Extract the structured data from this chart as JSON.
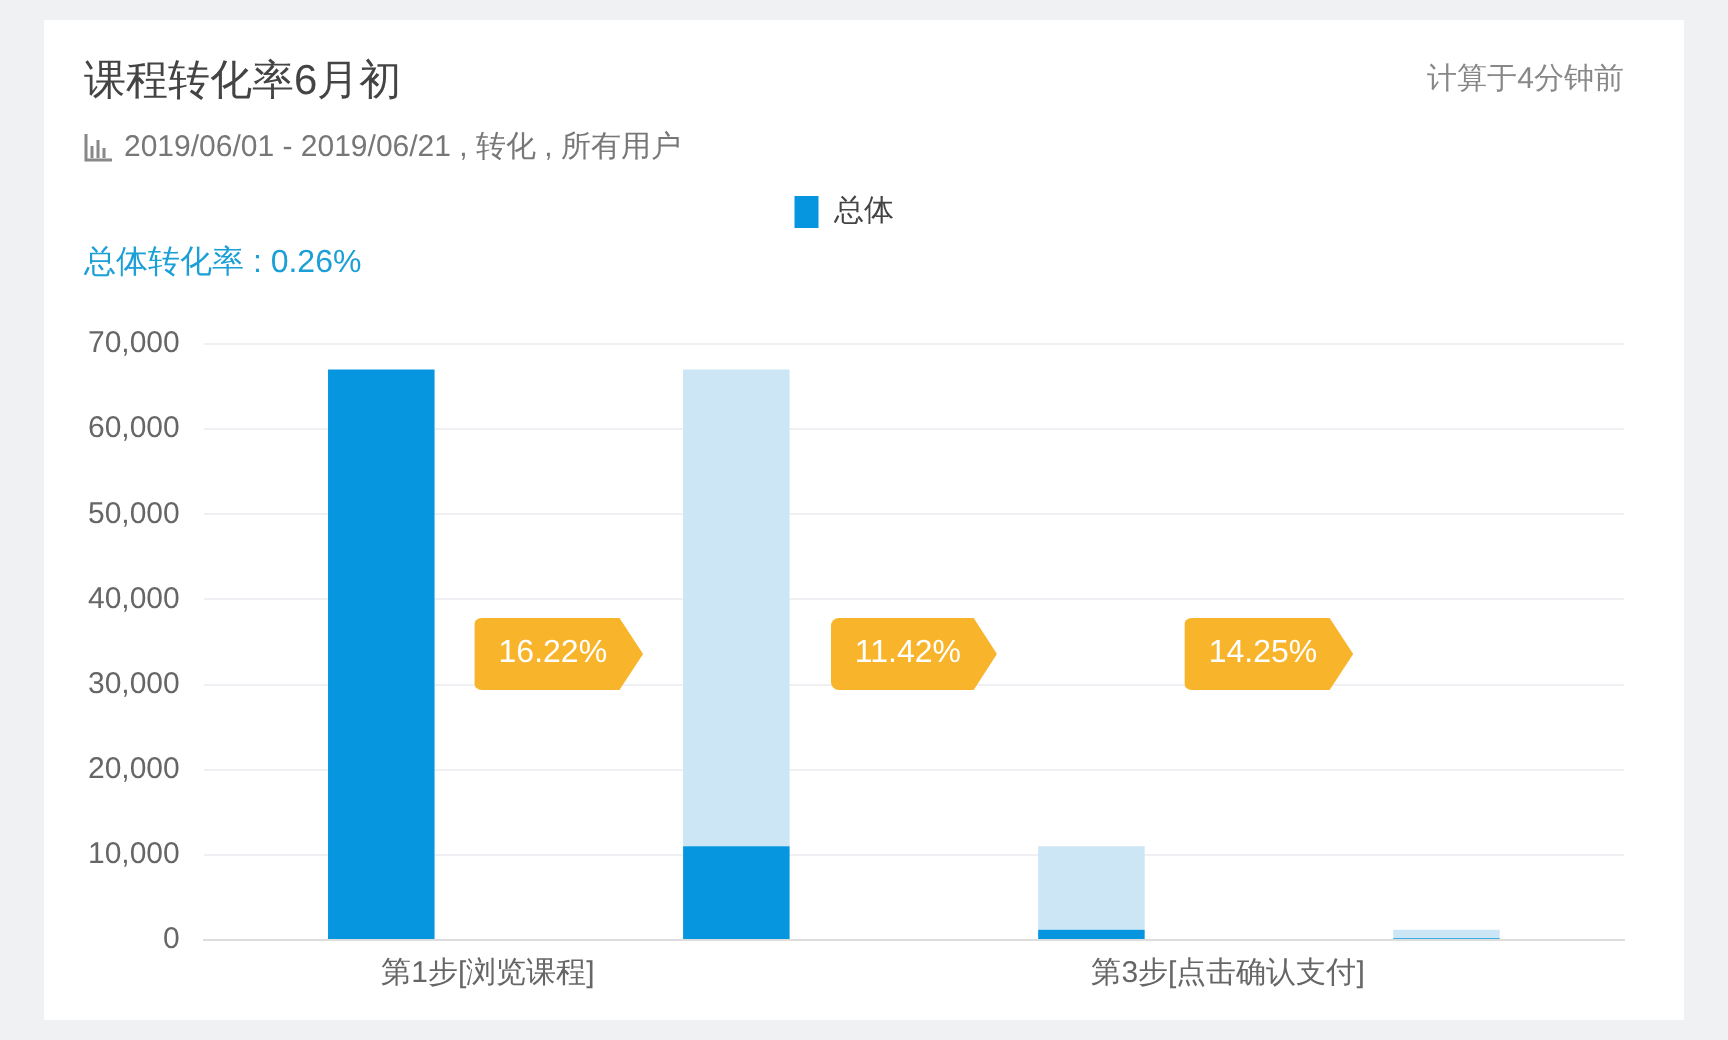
{
  "chart_data": {
    "type": "bar",
    "title": "课程转化率6月初",
    "subtitle": "2019/06/01 - 2019/06/21 , 转化  , 所有用户",
    "annotations": [
      "计算于4分钟前",
      "总体转化率 : 0.26%",
      "16.22%",
      "11.42%",
      "14.25%"
    ],
    "categories": [
      "第1步[浏览课程]",
      null,
      "第3步[点击确认支付]",
      null
    ],
    "series": [
      {
        "name": "总体",
        "color": "#0696e0",
        "values": [
          67000,
          11000,
          1200,
          200
        ]
      },
      {
        "color": "#cce6f6",
        "values": [
          null,
          56000,
          9800,
          1000
        ]
      }
    ],
    "stacked": true,
    "ylim": [
      0,
      70000
    ],
    "yticks": [
      {
        "value": 0,
        "label": "0"
      },
      {
        "value": 10000,
        "label": "10,000"
      },
      {
        "value": 20000,
        "label": "20,000"
      },
      {
        "value": 30000,
        "label": "30,000"
      },
      {
        "value": 40000,
        "label": "40,000"
      },
      {
        "value": 50000,
        "label": "50,000"
      },
      {
        "value": 60000,
        "label": "60,000"
      },
      {
        "value": 70000,
        "label": "70,000"
      }
    ],
    "grid": "y",
    "legend": "top"
  }
}
